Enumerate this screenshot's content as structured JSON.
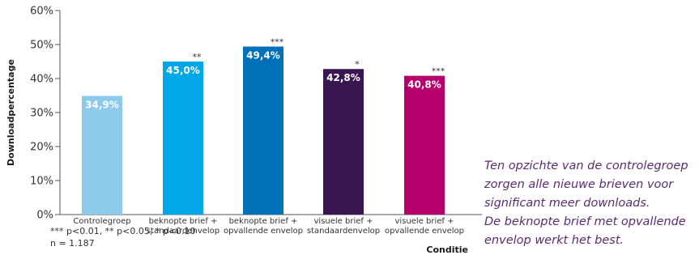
{
  "chart_data": {
    "type": "bar",
    "ylabel": "Downloadpercentage",
    "xlabel": "Conditie",
    "ylim": [
      0,
      60
    ],
    "yticks": [
      "0%",
      "10%",
      "20%",
      "30%",
      "40%",
      "50%",
      "60%"
    ],
    "categories": [
      [
        "Controlegroep"
      ],
      [
        "beknopte brief +",
        "standaardenvelop"
      ],
      [
        "beknopte brief +",
        "opvallende envelop"
      ],
      [
        "visuele brief +",
        "standaardenvelop"
      ],
      [
        "visuele brief +",
        "opvallende envelop"
      ]
    ],
    "values": [
      34.9,
      45.0,
      49.4,
      42.8,
      40.8
    ],
    "value_labels": [
      "34,9%",
      "45,0%",
      "49,4%",
      "42,8%",
      "40,8%"
    ],
    "significance": [
      "",
      "**",
      "***",
      "*",
      "***"
    ],
    "colors": [
      "#8ccaeb",
      "#00a6e6",
      "#0070b8",
      "#3a1650",
      "#b5006c"
    ],
    "grid": false,
    "legend": "none"
  },
  "footnote": {
    "line1": "*** p<0.01, ** p<0.05, * p<0.10",
    "line2": "n = 1.187"
  },
  "annotation": [
    "Ten opzichte van de controlegroep",
    "zorgen alle nieuwe brieven voor",
    "significant meer downloads.",
    "De beknopte brief met opvallende",
    "envelop werkt het best."
  ]
}
